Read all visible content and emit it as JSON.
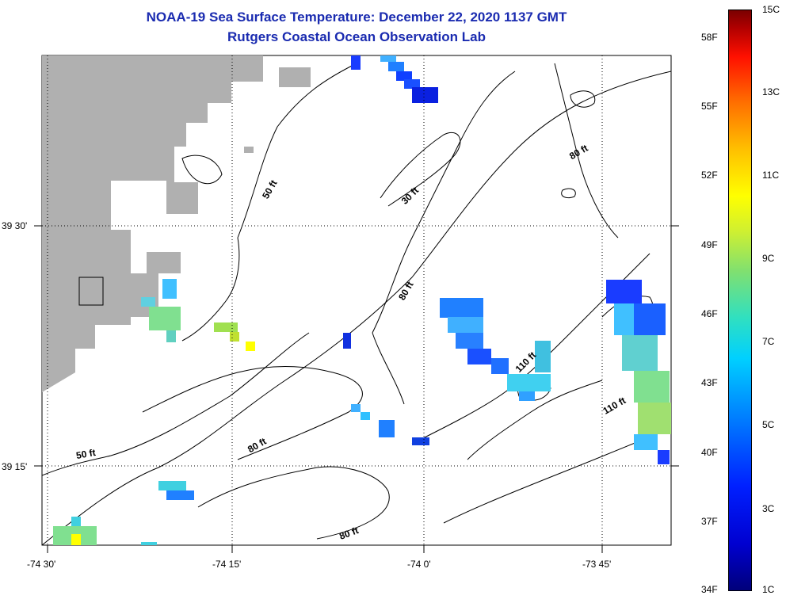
{
  "header": {
    "title": "NOAA-19 Sea Surface Temperature:  December 22, 2020 1137 GMT",
    "subtitle": "Rutgers Coastal Ocean Observation Lab"
  },
  "axes": {
    "x_ticks": [
      "-74 30'",
      "-74 15'",
      "-74 0'",
      "-73 45'"
    ],
    "y_ticks": [
      "39 30'",
      "39 15'"
    ]
  },
  "contour_labels": [
    "50 ft",
    "30 ft",
    "80 ft",
    "80 ft",
    "110 ft",
    "110 ft",
    "50 ft",
    "80 ft",
    "80 ft"
  ],
  "colorbar": {
    "fahrenheit": [
      "58F",
      "55F",
      "52F",
      "49F",
      "46F",
      "43F",
      "40F",
      "37F",
      "34F"
    ],
    "celsius": [
      "15C",
      "13C",
      "11C",
      "9C",
      "7C",
      "5C",
      "3C",
      "1C"
    ]
  },
  "colors": {
    "land": "#b0b0b0",
    "title": "#1a2bb0",
    "contour": "#000000"
  }
}
